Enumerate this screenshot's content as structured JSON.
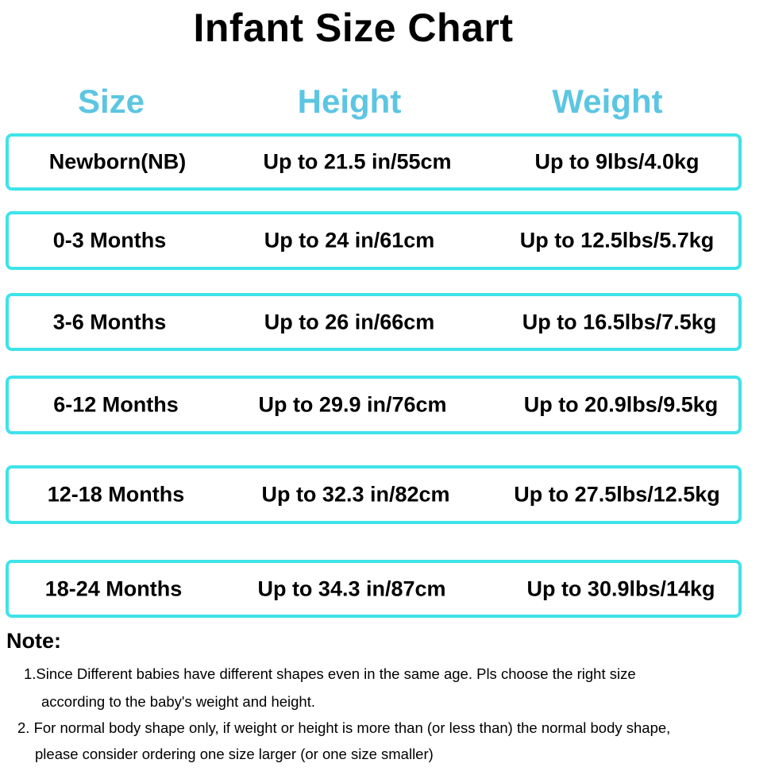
{
  "header": {
    "title": "Infant Size Chart"
  },
  "table": {
    "columns": [
      "Size",
      "Height",
      "Weight"
    ],
    "rows": [
      [
        "Newborn(NB)",
        "Up to 21.5 in/55cm",
        "Up to 9lbs/4.0kg"
      ],
      [
        "0-3 Months",
        "Up to 24 in/61cm",
        "Up to 12.5lbs/5.7kg"
      ],
      [
        "3-6 Months",
        "Up to 26 in/66cm",
        "Up to 16.5lbs/7.5kg"
      ],
      [
        "6-12 Months",
        "Up to 29.9 in/76cm",
        "Up to 20.9lbs/9.5kg"
      ],
      [
        "12-18 Months",
        "Up to 32.3 in/82cm",
        "Up to 27.5lbs/12.5kg"
      ],
      [
        "18-24 Months",
        "Up to 34.3 in/87cm",
        "Up to 30.9lbs/14kg"
      ]
    ]
  },
  "note": {
    "title": "Note:",
    "items": [
      [
        "1.Since Different babies have different shapes even in the same age. Pls choose the right size",
        "according to the baby's weight and height."
      ],
      [
        "2. For normal body shape only, if weight or height is more than (or less than) the normal body shape,",
        "please consider ordering one size larger (or one size smaller)"
      ]
    ]
  }
}
